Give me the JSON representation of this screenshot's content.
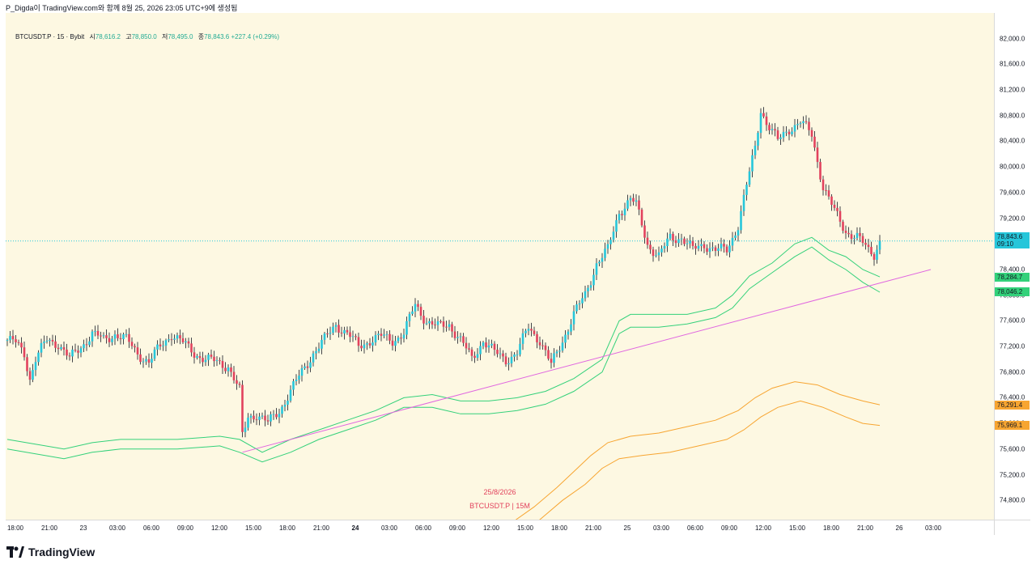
{
  "caption": "P_Digda이 TradingView.com와 함께 8월 25, 2026 23:05 UTC+9에 생성됨",
  "header": {
    "symbol": "BTCUSDT.P · 15 · Bybit",
    "open_label": "시",
    "open": "78,616.2",
    "high_label": "고",
    "high": "78,850.0",
    "low_label": "저",
    "low": "78,495.0",
    "close_label": "종",
    "close": "78,843.6",
    "change": "+227.4 (+0.29%)"
  },
  "price_labels": {
    "last_price": "78,843.6",
    "last_time": "09:10",
    "green_upper": "78,284.7",
    "green_lower": "78,046.2",
    "orange_upper": "76,291.4",
    "orange_lower": "75,969.1"
  },
  "watermark": {
    "date": "25/8/2026",
    "symbol": "BTCUSDT.P | 15M"
  },
  "branding": "TradingView",
  "colors": {
    "background": "#fdf8e2",
    "candle_up": "#26c6da",
    "candle_down": "#e2425d",
    "green_band": "#33d17a",
    "orange_band": "#f7a531",
    "trendline": "#e066e0",
    "last_price_bg": "#26c6da"
  },
  "chart_data": {
    "type": "candlestick",
    "symbol": "BTCUSDT.P",
    "interval": "15",
    "exchange": "Bybit",
    "ylim": [
      74500,
      82400
    ],
    "y_ticks": [
      "74,800.0",
      "75,200.0",
      "75,600.0",
      "76,000.0",
      "76,400.0",
      "76,800.0",
      "77,200.0",
      "77,600.0",
      "78,000.0",
      "78,400.0",
      "79,200.0",
      "79,600.0",
      "80,000.0",
      "80,400.0",
      "80,800.0",
      "81,200.0",
      "81,600.0",
      "82,000.0"
    ],
    "x_ticks": [
      {
        "label": "18:00",
        "bar": 0,
        "bold": false
      },
      {
        "label": "21:00",
        "bar": 12,
        "bold": false
      },
      {
        "label": "23",
        "bar": 24,
        "bold": false
      },
      {
        "label": "03:00",
        "bar": 36,
        "bold": false
      },
      {
        "label": "06:00",
        "bar": 48,
        "bold": false
      },
      {
        "label": "09:00",
        "bar": 60,
        "bold": false
      },
      {
        "label": "12:00",
        "bar": 72,
        "bold": false
      },
      {
        "label": "15:00",
        "bar": 84,
        "bold": false
      },
      {
        "label": "18:00",
        "bar": 96,
        "bold": false
      },
      {
        "label": "21:00",
        "bar": 108,
        "bold": false
      },
      {
        "label": "24",
        "bar": 120,
        "bold": true
      },
      {
        "label": "03:00",
        "bar": 132,
        "bold": false
      },
      {
        "label": "06:00",
        "bar": 144,
        "bold": false
      },
      {
        "label": "09:00",
        "bar": 156,
        "bold": false
      },
      {
        "label": "12:00",
        "bar": 168,
        "bold": false
      },
      {
        "label": "15:00",
        "bar": 180,
        "bold": false
      },
      {
        "label": "18:00",
        "bar": 192,
        "bold": false
      },
      {
        "label": "21:00",
        "bar": 204,
        "bold": false
      },
      {
        "label": "25",
        "bar": 216,
        "bold": false
      },
      {
        "label": "03:00",
        "bar": 228,
        "bold": false
      },
      {
        "label": "06:00",
        "bar": 240,
        "bold": false
      },
      {
        "label": "09:00",
        "bar": 252,
        "bold": false
      },
      {
        "label": "12:00",
        "bar": 264,
        "bold": false
      },
      {
        "label": "15:00",
        "bar": 276,
        "bold": false
      },
      {
        "label": "18:00",
        "bar": 288,
        "bold": false
      },
      {
        "label": "21:00",
        "bar": 300,
        "bold": false
      },
      {
        "label": "26",
        "bar": 312,
        "bold": false
      },
      {
        "label": "03:00",
        "bar": 324,
        "bold": false
      }
    ],
    "price_path": [
      [
        0,
        77300
      ],
      [
        3,
        77250
      ],
      [
        6,
        77100
      ],
      [
        8,
        76700
      ],
      [
        10,
        77000
      ],
      [
        14,
        77300
      ],
      [
        18,
        77250
      ],
      [
        22,
        77000
      ],
      [
        26,
        77200
      ],
      [
        30,
        77400
      ],
      [
        34,
        77300
      ],
      [
        38,
        77400
      ],
      [
        42,
        77300
      ],
      [
        46,
        77100
      ],
      [
        50,
        76950
      ],
      [
        54,
        77200
      ],
      [
        58,
        77400
      ],
      [
        62,
        77250
      ],
      [
        66,
        77100
      ],
      [
        70,
        77000
      ],
      [
        74,
        76950
      ],
      [
        78,
        76900
      ],
      [
        82,
        76500
      ],
      [
        83,
        75800
      ],
      [
        85,
        76100
      ],
      [
        88,
        76150
      ],
      [
        92,
        76000
      ],
      [
        96,
        76200
      ],
      [
        100,
        76500
      ],
      [
        104,
        76800
      ],
      [
        108,
        77100
      ],
      [
        112,
        77300
      ],
      [
        116,
        77550
      ],
      [
        120,
        77400
      ],
      [
        124,
        77200
      ],
      [
        128,
        77300
      ],
      [
        132,
        77350
      ],
      [
        136,
        77300
      ],
      [
        140,
        77400
      ],
      [
        144,
        77850
      ],
      [
        148,
        77600
      ],
      [
        152,
        77500
      ],
      [
        156,
        77550
      ],
      [
        160,
        77300
      ],
      [
        164,
        77000
      ],
      [
        168,
        77300
      ],
      [
        172,
        77100
      ],
      [
        176,
        77000
      ],
      [
        180,
        77100
      ],
      [
        184,
        77500
      ],
      [
        188,
        77300
      ],
      [
        192,
        76900
      ],
      [
        196,
        77300
      ],
      [
        200,
        77700
      ],
      [
        204,
        78000
      ],
      [
        208,
        78500
      ],
      [
        212,
        78700
      ],
      [
        216,
        79300
      ],
      [
        220,
        79500
      ],
      [
        222,
        79400
      ],
      [
        226,
        78800
      ],
      [
        230,
        78600
      ],
      [
        234,
        78900
      ],
      [
        238,
        78900
      ],
      [
        242,
        78700
      ],
      [
        246,
        78800
      ],
      [
        250,
        78700
      ],
      [
        254,
        78700
      ],
      [
        258,
        79100
      ],
      [
        262,
        79900
      ],
      [
        264,
        80300
      ],
      [
        266,
        80900
      ],
      [
        268,
        80700
      ],
      [
        272,
        80400
      ],
      [
        276,
        80600
      ],
      [
        280,
        80700
      ],
      [
        284,
        80500
      ],
      [
        288,
        79700
      ],
      [
        292,
        79300
      ],
      [
        296,
        79000
      ],
      [
        300,
        78900
      ],
      [
        304,
        78700
      ],
      [
        306,
        78650
      ],
      [
        308,
        78850
      ]
    ],
    "green_band": {
      "upper": [
        [
          0,
          75750
        ],
        [
          20,
          75600
        ],
        [
          30,
          75700
        ],
        [
          40,
          75750
        ],
        [
          60,
          75750
        ],
        [
          75,
          75800
        ],
        [
          82,
          75750
        ],
        [
          90,
          75550
        ],
        [
          100,
          75750
        ],
        [
          110,
          75900
        ],
        [
          120,
          76050
        ],
        [
          130,
          76200
        ],
        [
          140,
          76400
        ],
        [
          150,
          76450
        ],
        [
          160,
          76350
        ],
        [
          170,
          76350
        ],
        [
          180,
          76400
        ],
        [
          190,
          76500
        ],
        [
          200,
          76700
        ],
        [
          210,
          77000
        ],
        [
          216,
          77600
        ],
        [
          220,
          77700
        ],
        [
          230,
          77700
        ],
        [
          240,
          77700
        ],
        [
          250,
          77800
        ],
        [
          256,
          78000
        ],
        [
          262,
          78300
        ],
        [
          270,
          78500
        ],
        [
          278,
          78800
        ],
        [
          284,
          78900
        ],
        [
          290,
          78700
        ],
        [
          296,
          78600
        ],
        [
          302,
          78400
        ],
        [
          308,
          78285
        ]
      ],
      "lower": [
        [
          0,
          75600
        ],
        [
          20,
          75450
        ],
        [
          30,
          75550
        ],
        [
          40,
          75600
        ],
        [
          60,
          75600
        ],
        [
          75,
          75650
        ],
        [
          82,
          75550
        ],
        [
          90,
          75400
        ],
        [
          100,
          75550
        ],
        [
          110,
          75750
        ],
        [
          120,
          75900
        ],
        [
          130,
          76050
        ],
        [
          140,
          76250
        ],
        [
          150,
          76250
        ],
        [
          160,
          76150
        ],
        [
          170,
          76150
        ],
        [
          180,
          76200
        ],
        [
          190,
          76300
        ],
        [
          200,
          76500
        ],
        [
          210,
          76800
        ],
        [
          216,
          77400
        ],
        [
          220,
          77500
        ],
        [
          230,
          77500
        ],
        [
          240,
          77550
        ],
        [
          250,
          77650
        ],
        [
          256,
          77800
        ],
        [
          262,
          78100
        ],
        [
          270,
          78350
        ],
        [
          278,
          78600
        ],
        [
          284,
          78750
        ],
        [
          290,
          78550
        ],
        [
          296,
          78400
        ],
        [
          302,
          78200
        ],
        [
          308,
          78046
        ]
      ]
    },
    "orange_band": {
      "upper": [
        [
          170,
          74400
        ],
        [
          178,
          74450
        ],
        [
          186,
          74700
        ],
        [
          194,
          75000
        ],
        [
          200,
          75250
        ],
        [
          206,
          75500
        ],
        [
          212,
          75700
        ],
        [
          220,
          75800
        ],
        [
          230,
          75850
        ],
        [
          240,
          75950
        ],
        [
          250,
          76050
        ],
        [
          258,
          76200
        ],
        [
          264,
          76400
        ],
        [
          270,
          76550
        ],
        [
          278,
          76650
        ],
        [
          286,
          76600
        ],
        [
          294,
          76450
        ],
        [
          302,
          76350
        ],
        [
          308,
          76291
        ]
      ],
      "lower": [
        [
          180,
          74300
        ],
        [
          188,
          74500
        ],
        [
          196,
          74800
        ],
        [
          204,
          75050
        ],
        [
          210,
          75300
        ],
        [
          216,
          75450
        ],
        [
          224,
          75500
        ],
        [
          234,
          75550
        ],
        [
          244,
          75650
        ],
        [
          254,
          75750
        ],
        [
          260,
          75900
        ],
        [
          266,
          76100
        ],
        [
          272,
          76250
        ],
        [
          280,
          76350
        ],
        [
          288,
          76250
        ],
        [
          296,
          76100
        ],
        [
          302,
          76000
        ],
        [
          308,
          75969
        ]
      ]
    },
    "trendline": [
      [
        83,
        75550
      ],
      [
        326,
        78400
      ]
    ],
    "last_price": 78843.6
  }
}
